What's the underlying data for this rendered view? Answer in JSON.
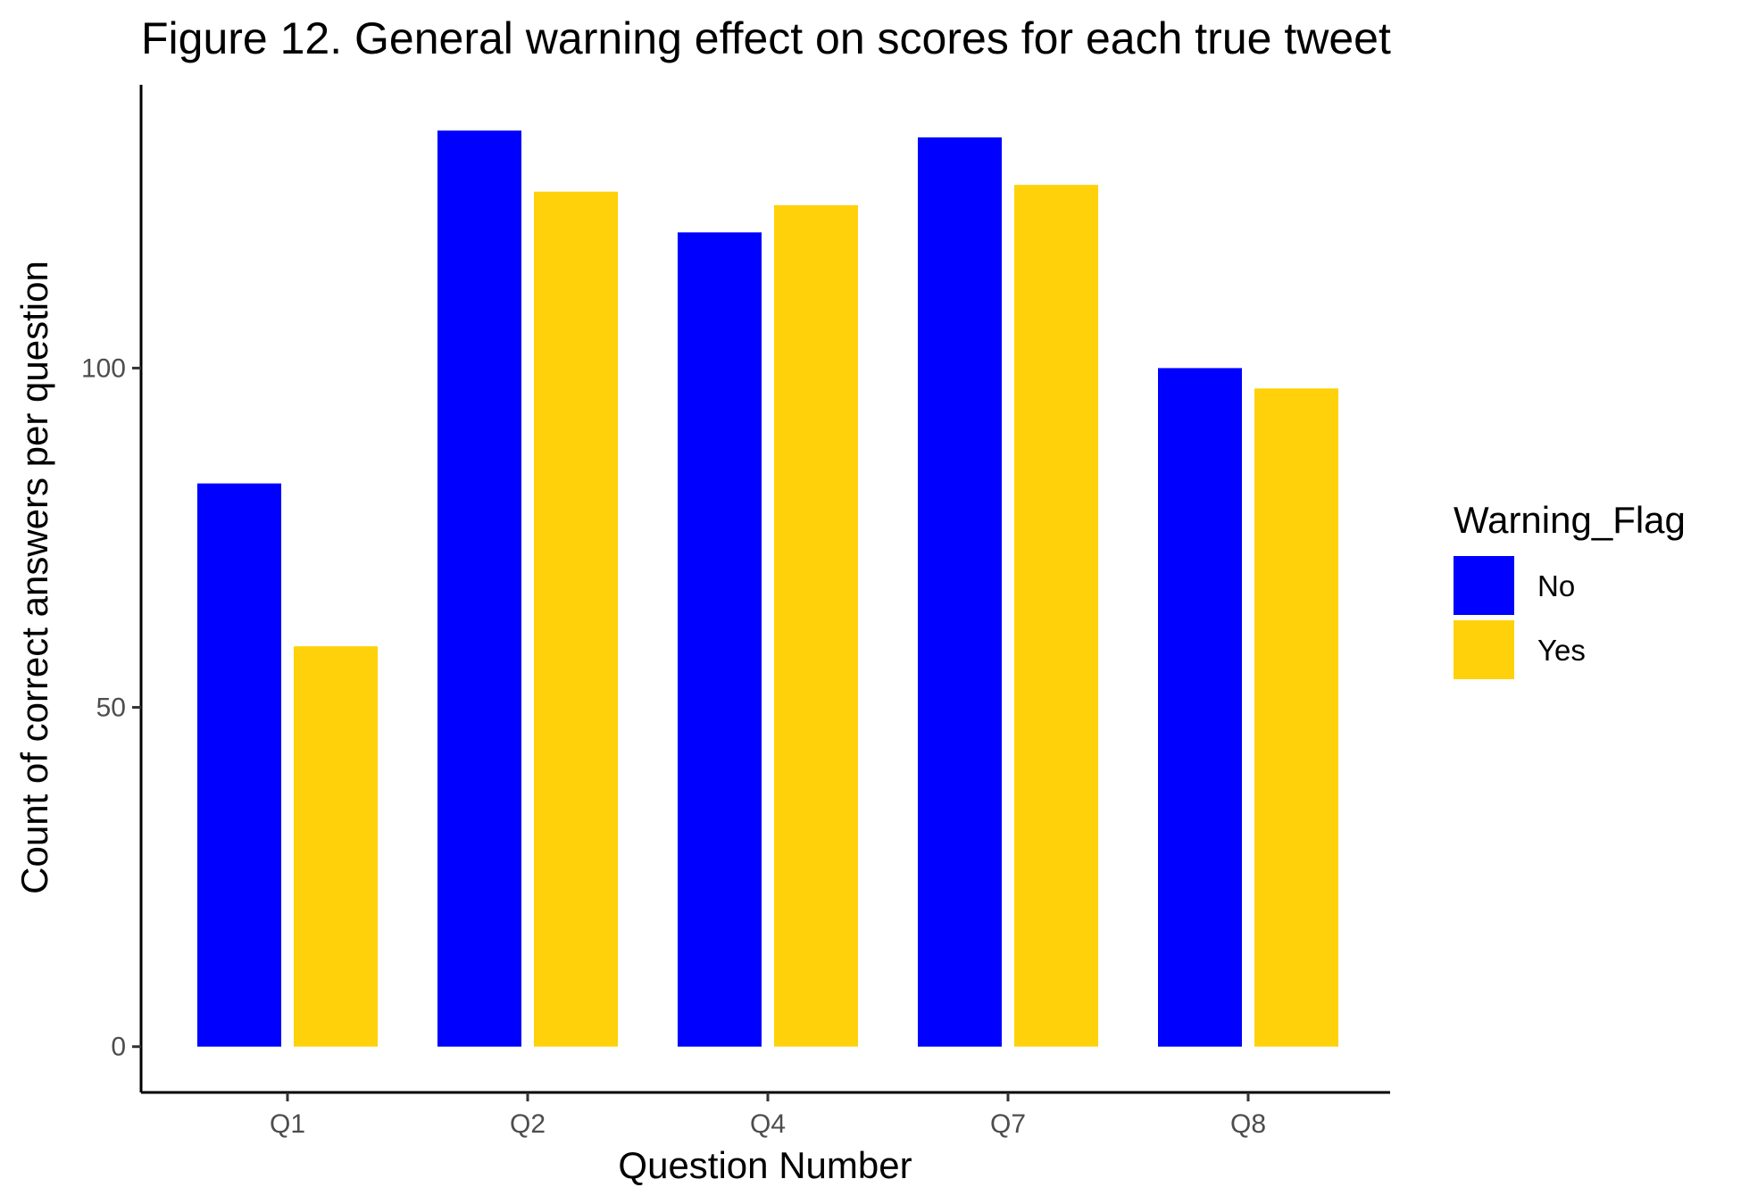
{
  "chart_data": {
    "type": "bar",
    "title": "Figure 12. General warning effect on scores for each true tweet",
    "xlabel": "Question Number",
    "ylabel": "Count of correct answers per question",
    "categories": [
      "Q1",
      "Q2",
      "Q4",
      "Q7",
      "Q8"
    ],
    "series": [
      {
        "name": "No",
        "color": "#0000ff",
        "values": [
          83,
          135,
          120,
          134,
          100
        ]
      },
      {
        "name": "Yes",
        "color": "#ffd10a",
        "values": [
          59,
          126,
          124,
          127,
          97
        ]
      }
    ],
    "ylim": [
      -6.75,
      141.75
    ],
    "yticks": [
      0,
      50,
      100
    ],
    "ytick_labels": [
      "0",
      "50",
      "100"
    ],
    "grid": false,
    "legend": {
      "title": "Warning_Flag",
      "position": "right",
      "items": [
        "No",
        "Yes"
      ]
    }
  }
}
